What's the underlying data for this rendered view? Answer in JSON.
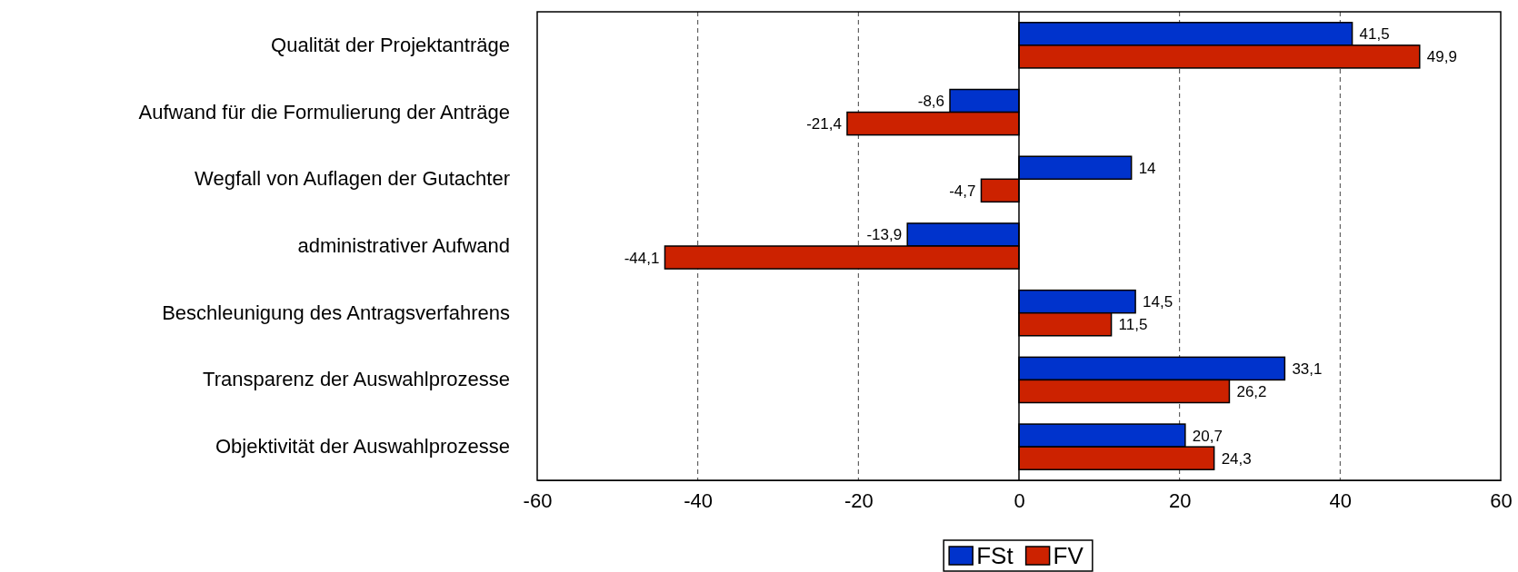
{
  "chart_data": {
    "type": "bar",
    "orientation": "horizontal",
    "categories": [
      "Qualität der Projektanträge",
      "Aufwand für die Formulierung der Anträge",
      "Wegfall von Auflagen der Gutachter",
      "administrativer Aufwand",
      "Beschleunigung des Antragsverfahrens",
      "Transparenz der Auswahlprozesse",
      "Objektivität der Auswahlprozesse"
    ],
    "series": [
      {
        "name": "FSt",
        "color": "#0033cc",
        "values": [
          41.5,
          -8.6,
          14,
          -13.9,
          14.5,
          33.1,
          20.7
        ],
        "value_labels": [
          "41,5",
          "-8,6",
          "14",
          "-13,9",
          "14,5",
          "33,1",
          "20,7"
        ]
      },
      {
        "name": "FV",
        "color": "#cc2200",
        "values": [
          49.9,
          -21.4,
          -4.7,
          -44.1,
          11.5,
          26.2,
          24.3
        ],
        "value_labels": [
          "49,9",
          "-21,4",
          "-4,7",
          "-44,1",
          "11,5",
          "26,2",
          "24,3"
        ]
      }
    ],
    "xlim": [
      -60,
      60
    ],
    "xticks": [
      -60,
      -40,
      -20,
      0,
      20,
      40,
      60
    ],
    "grid": "x",
    "legend": "bottom"
  }
}
